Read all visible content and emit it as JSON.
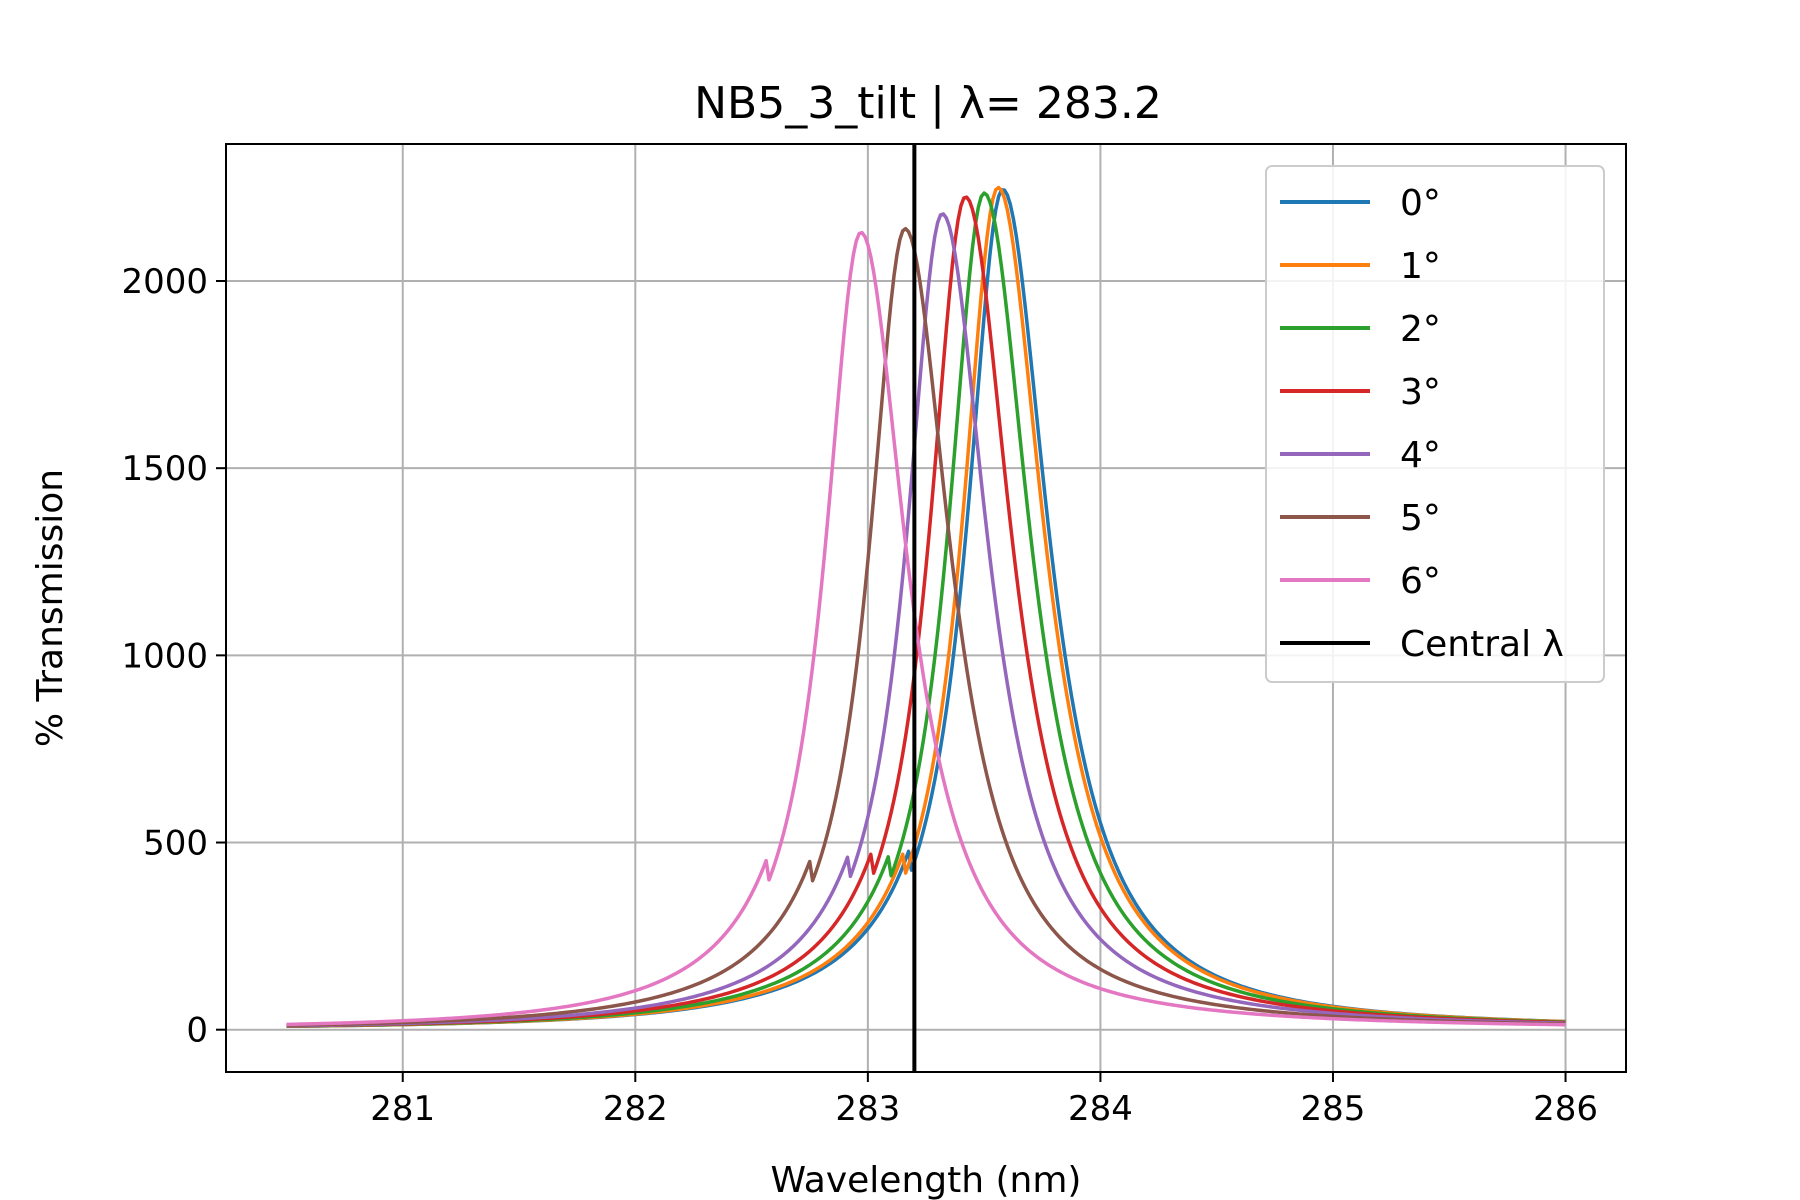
{
  "chart_data": {
    "type": "line",
    "title": "NB5_3_tilt | λ= 283.2",
    "xlabel": "Wavelength (nm)",
    "ylabel": "% Transmission",
    "xlim": [
      280.24,
      286.26
    ],
    "ylim": [
      -113,
      2366
    ],
    "xticks": [
      281,
      282,
      283,
      284,
      285,
      286
    ],
    "yticks": [
      0,
      500,
      1000,
      1500,
      2000
    ],
    "grid": true,
    "legend_position": "top-right",
    "series_shape_note_excluded": true,
    "series": [
      {
        "name": "0°",
        "color": "#1f77b4",
        "peak_x": 283.58,
        "peak_y": 2245,
        "hwhm_left": 0.19,
        "hwhm_right": 0.24
      },
      {
        "name": "1°",
        "color": "#ff7f0e",
        "peak_x": 283.56,
        "peak_y": 2250,
        "hwhm_left": 0.19,
        "hwhm_right": 0.24
      },
      {
        "name": "2°",
        "color": "#2ca02c",
        "peak_x": 283.5,
        "peak_y": 2235,
        "hwhm_left": 0.19,
        "hwhm_right": 0.24
      },
      {
        "name": "3°",
        "color": "#d62728",
        "peak_x": 283.42,
        "peak_y": 2225,
        "hwhm_left": 0.19,
        "hwhm_right": 0.24
      },
      {
        "name": "4°",
        "color": "#9467bd",
        "peak_x": 283.32,
        "peak_y": 2180,
        "hwhm_left": 0.19,
        "hwhm_right": 0.24
      },
      {
        "name": "5°",
        "color": "#8c564b",
        "peak_x": 283.16,
        "peak_y": 2140,
        "hwhm_left": 0.19,
        "hwhm_right": 0.24
      },
      {
        "name": "6°",
        "color": "#e377c2",
        "peak_x": 282.97,
        "peak_y": 2130,
        "hwhm_left": 0.19,
        "hwhm_right": 0.24
      }
    ],
    "x_range": [
      280.5,
      286.0
    ],
    "vline": {
      "name": "Central λ",
      "x": 283.2,
      "color": "#000000"
    }
  }
}
